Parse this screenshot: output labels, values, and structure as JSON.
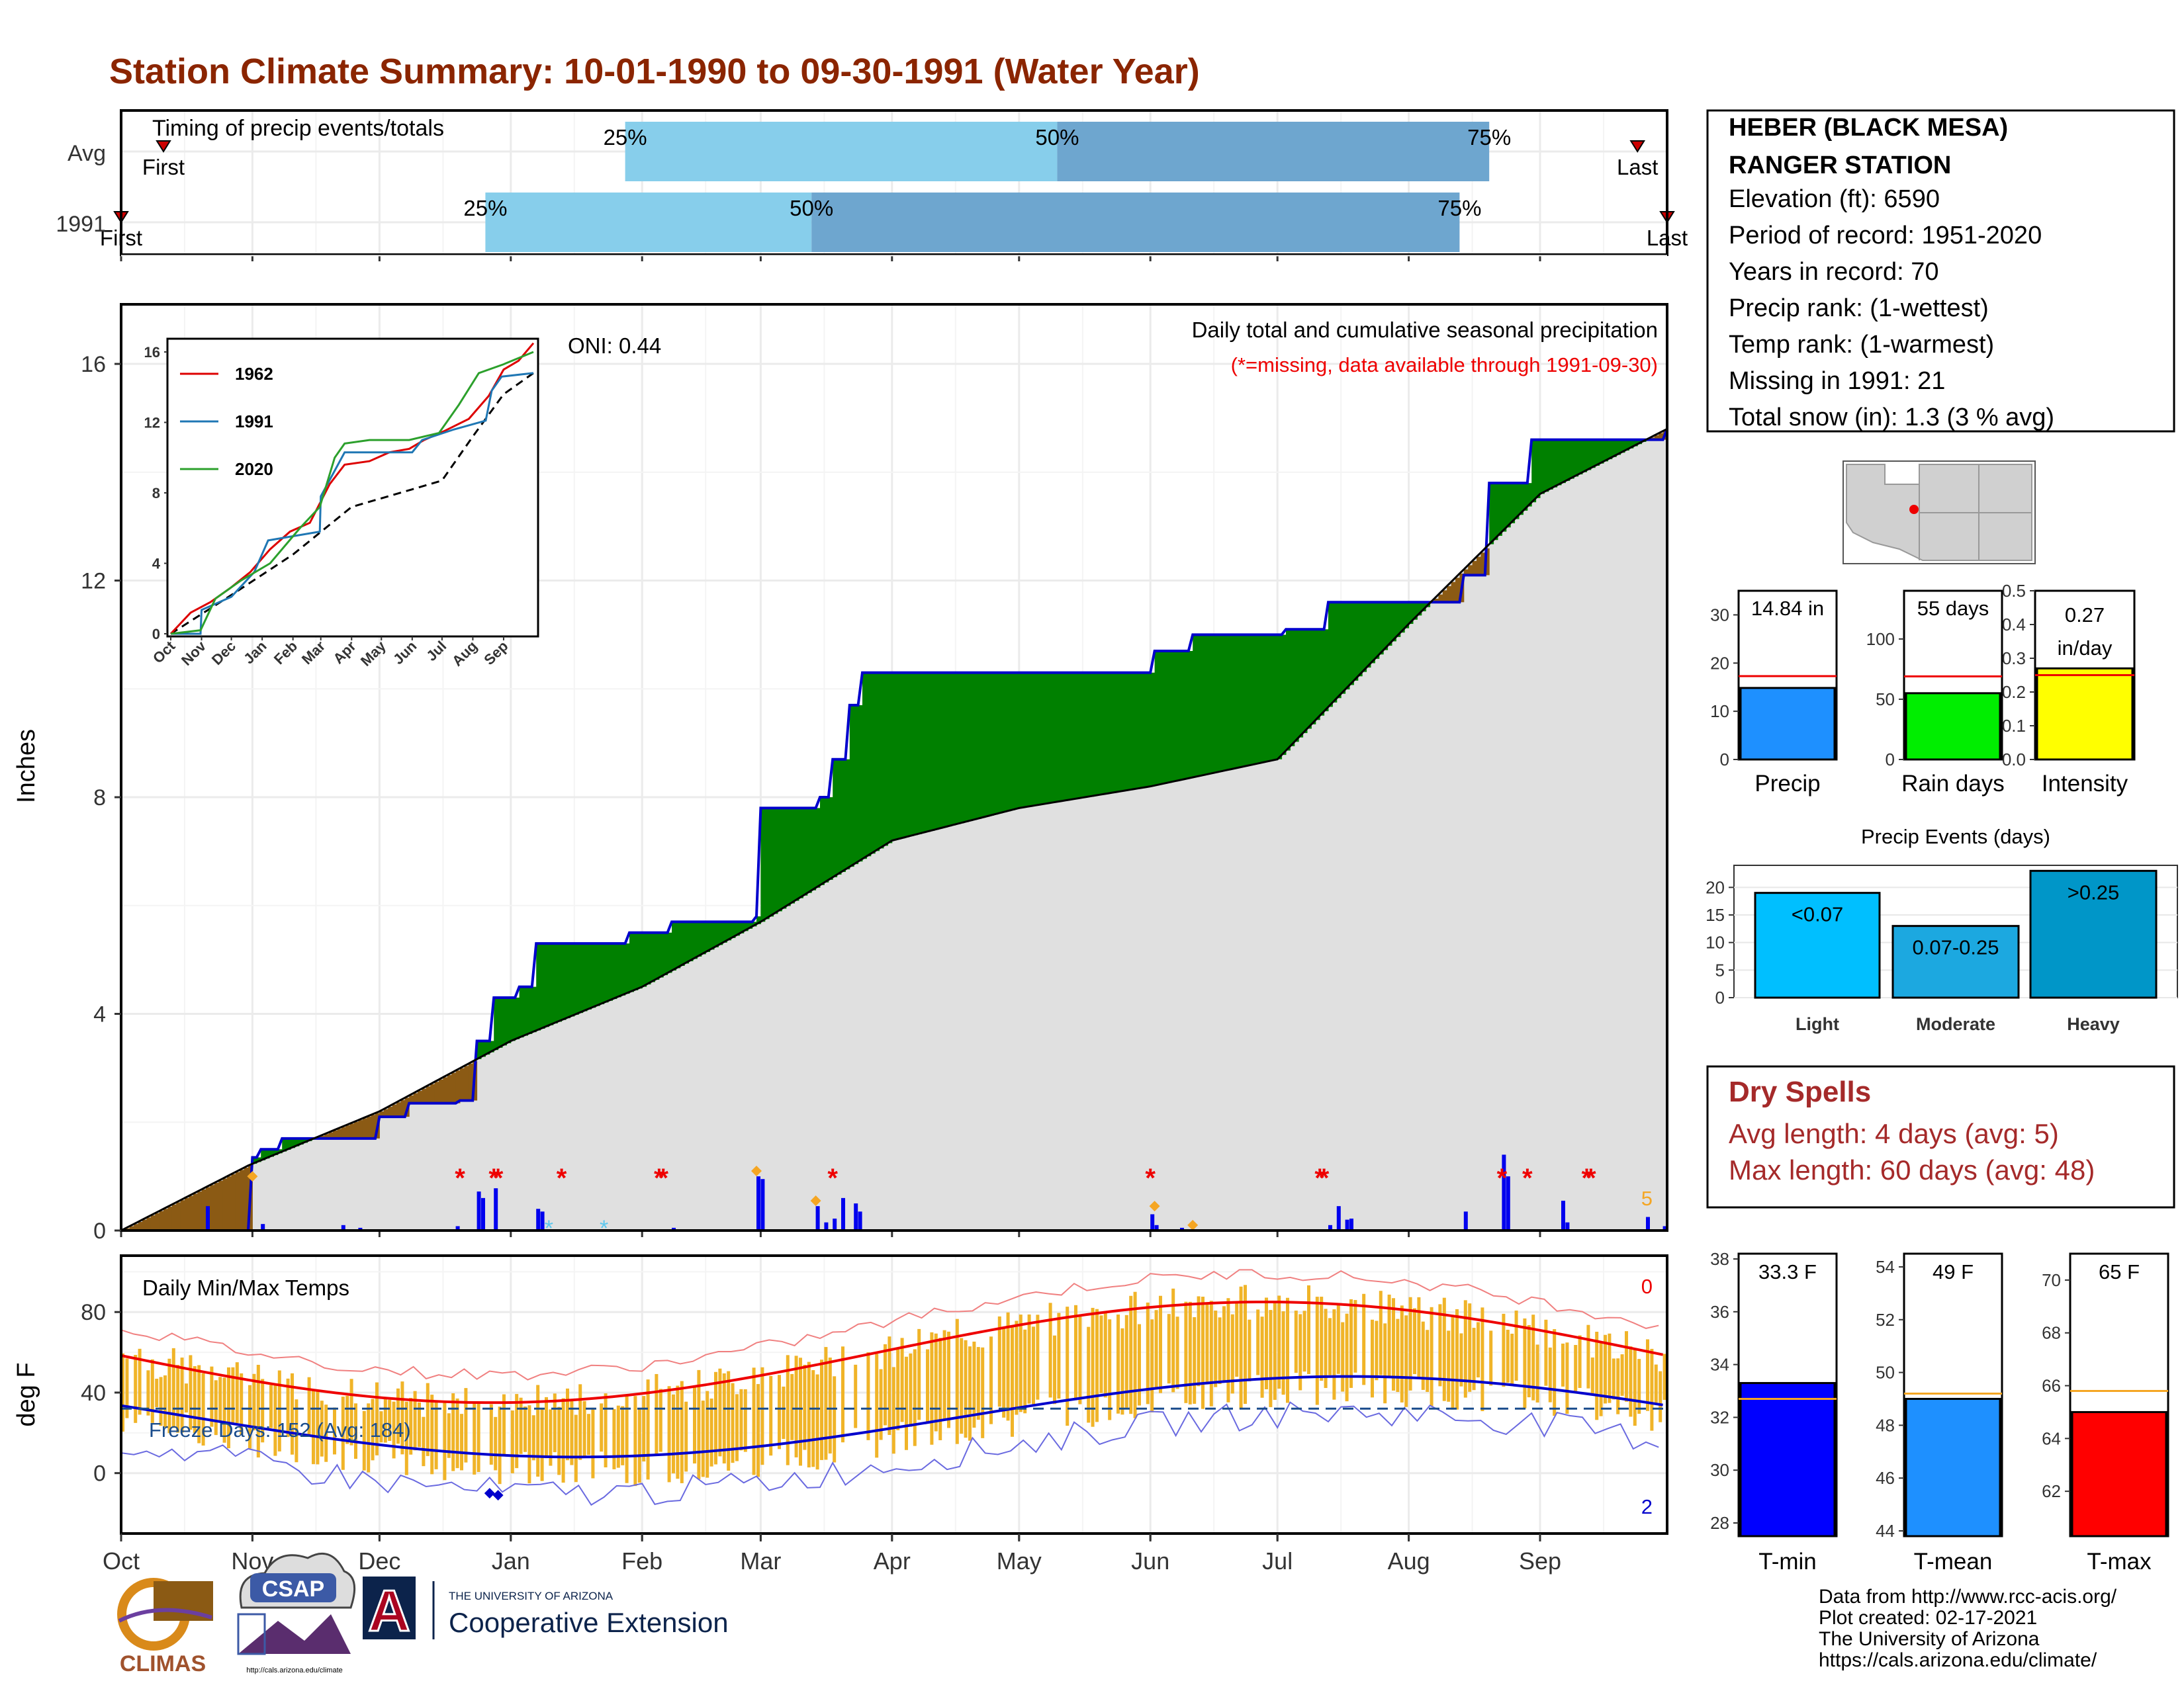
{
  "title": "Station Climate Summary: 10-01-1990 to 09-30-1991 (Water Year)",
  "timing_panel": {
    "label": "Timing of precip events/totals",
    "rows": [
      {
        "name": "Avg",
        "first_label": "First",
        "last_label": "Last",
        "first_day": 10,
        "last_day": 358,
        "p25_day": 119,
        "p50_day": 221,
        "p75_day": 323
      },
      {
        "name": "1991",
        "first_label": "First",
        "last_label": "Last",
        "first_day": 0,
        "last_day": 365,
        "p25_day": 86,
        "p50_day": 163,
        "p75_day": 316
      }
    ],
    "pct_labels": [
      "25%",
      "50%",
      "75%"
    ],
    "colors": {
      "early": "#87ceeb",
      "late": "#6ea6cf",
      "marker": "#cc0000"
    }
  },
  "info_box": {
    "station_line1": "HEBER (BLACK MESA)",
    "station_line2": "RANGER STATION",
    "elevation": "Elevation (ft): 6590",
    "period": "Period of record: 1951-2020",
    "years": "Years in record: 70",
    "precip_rank": "Precip rank:  (1-wettest)",
    "temp_rank": "Temp rank:  (1-warmest)",
    "missing": "Missing in 1991: 21",
    "snow": "Total snow (in): 1.3 (3 % avg)"
  },
  "precip_panel": {
    "header": "Daily total and cumulative seasonal precipitation",
    "missing_note": "(*=missing, data available through 1991-09-30)",
    "oni": "ONI: 0.44",
    "ylabel": "Inches",
    "y_ticks": [
      0,
      4,
      8,
      12,
      16
    ],
    "corner_count": "5",
    "colors": {
      "above": "#008000",
      "below": "#8b5a14",
      "normal": "#e0e0e0",
      "line": "#0000cc"
    }
  },
  "inset": {
    "y_ticks": [
      0,
      4,
      8,
      12,
      16
    ],
    "x_ticks": [
      "Oct",
      "Nov",
      "Dec",
      "Jan",
      "Feb",
      "Mar",
      "Apr",
      "May",
      "Jun",
      "Jul",
      "Aug",
      "Sep"
    ],
    "legend": [
      {
        "name": "1962",
        "color": "#dd0000"
      },
      {
        "name": "1991",
        "color": "#1f77b4"
      },
      {
        "name": "2020",
        "color": "#2ca02c"
      }
    ]
  },
  "temp_panel": {
    "label": "Daily Min/Max Temps",
    "ylabel": "deg F",
    "y_ticks": [
      0,
      40,
      80
    ],
    "freeze_label": "Freeze Days: 152 (Avg: 184)",
    "count_top": "0",
    "count_bottom": "2",
    "colors": {
      "bars": "#f0b428",
      "max": "#ee0000",
      "min": "#0000cc",
      "freeze": "#1a4c8c"
    }
  },
  "months": [
    "Oct",
    "Nov",
    "Dec",
    "Jan",
    "Feb",
    "Mar",
    "Apr",
    "May",
    "Jun",
    "Jul",
    "Aug",
    "Sep"
  ],
  "bars_precip": {
    "items": [
      {
        "label": "Precip",
        "value": 14.84,
        "avg": 17.3,
        "value_label": "14.84 in",
        "color": "#1e90ff",
        "ymax": 35,
        "ticks": [
          0,
          10,
          20,
          30
        ]
      },
      {
        "label": "Rain days",
        "value": 55,
        "avg": 69,
        "value_label": "55 days",
        "color": "#00ee00",
        "ymax": 140,
        "ticks": [
          0,
          50,
          100
        ]
      },
      {
        "label": "Intensity",
        "value": 0.27,
        "avg": 0.25,
        "value_label": "0.27",
        "value_label2": "in/day",
        "color": "#ffff00",
        "ymax": 0.5,
        "ticks": [
          0.0,
          0.1,
          0.2,
          0.3,
          0.4,
          0.5
        ]
      }
    ]
  },
  "precip_events": {
    "title": "Precip Events (days)",
    "ymax": 24,
    "ticks": [
      0,
      5,
      10,
      15,
      20
    ],
    "items": [
      {
        "label": "Light",
        "value": 19,
        "text": "<0.07",
        "color": "#00bfff"
      },
      {
        "label": "Moderate",
        "value": 13,
        "text": "0.07-0.25",
        "color": "#1ca8e0"
      },
      {
        "label": "Heavy",
        "value": 23,
        "text": ">0.25",
        "color": "#0096c8"
      }
    ]
  },
  "dry_spells": {
    "title": "Dry Spells",
    "avg": "Avg length: 4 days (avg: 5)",
    "max": "Max length: 60 days (avg: 48)"
  },
  "temp_bars": {
    "items": [
      {
        "label": "T-min",
        "value": 33.3,
        "avg": 32.7,
        "value_label": "33.3 F",
        "color": "#0000ff",
        "ymin": 27.5,
        "ymax": 38.2,
        "ticks": [
          28,
          30,
          32,
          34,
          36,
          38
        ]
      },
      {
        "label": "T-mean",
        "value": 49.0,
        "avg": 49.2,
        "value_label": "49 F",
        "color": "#1e90ff",
        "ymin": 43.8,
        "ymax": 54.5,
        "ticks": [
          44,
          46,
          48,
          50,
          52,
          54
        ]
      },
      {
        "label": "T-max",
        "value": 65.0,
        "avg": 65.8,
        "value_label": "65 F",
        "color": "#ff0000",
        "ymin": 60.3,
        "ymax": 71.0,
        "ticks": [
          62,
          64,
          66,
          68,
          70
        ]
      }
    ]
  },
  "footer": {
    "line1": "Data from http://www.rcc-acis.org/",
    "line2": "Plot created: 02-17-2021",
    "line3": "The University of Arizona",
    "line4": "https://cals.arizona.edu/climate/",
    "logo_climas": "CLIMAS",
    "logo_csap": "CSAP",
    "ua_small": "THE UNIVERSITY OF ARIZONA",
    "ua_big": "Cooperative Extension",
    "ua_letter": "A",
    "csap_url": "http://cals.arizona.edu/climate"
  }
}
